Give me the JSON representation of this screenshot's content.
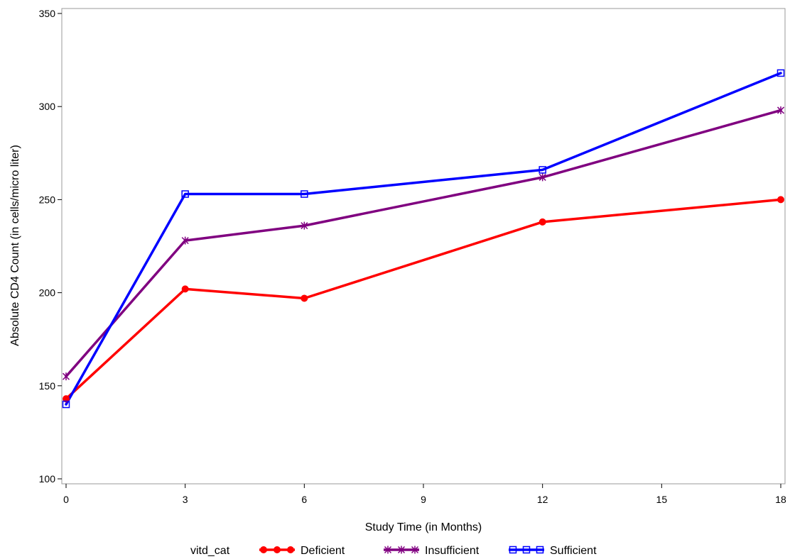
{
  "chart_data": {
    "type": "line",
    "xlabel": "Study Time (in Months)",
    "ylabel": "Absolute CD4 Count (in cells/micro liter)",
    "xlim": [
      0,
      18
    ],
    "ylim": [
      100,
      350
    ],
    "xticks": [
      0,
      3,
      6,
      9,
      12,
      15,
      18
    ],
    "yticks": [
      100,
      150,
      200,
      250,
      300,
      350
    ],
    "grid": false,
    "legend": {
      "title": "vitd_cat",
      "placement": "bottom"
    },
    "series": [
      {
        "name": "Deficient",
        "color": "#ff0000",
        "marker": "filled-circle",
        "x": [
          0,
          3,
          6,
          12,
          18
        ],
        "y": [
          143,
          202,
          197,
          238,
          250
        ]
      },
      {
        "name": "Insufficient",
        "color": "#800080",
        "marker": "star",
        "x": [
          0,
          3,
          6,
          12,
          18
        ],
        "y": [
          155,
          228,
          236,
          262,
          298
        ]
      },
      {
        "name": "Sufficient",
        "color": "#0000ff",
        "marker": "square",
        "x": [
          0,
          3,
          6,
          12,
          18
        ],
        "y": [
          140,
          253,
          253,
          266,
          318
        ]
      }
    ]
  }
}
